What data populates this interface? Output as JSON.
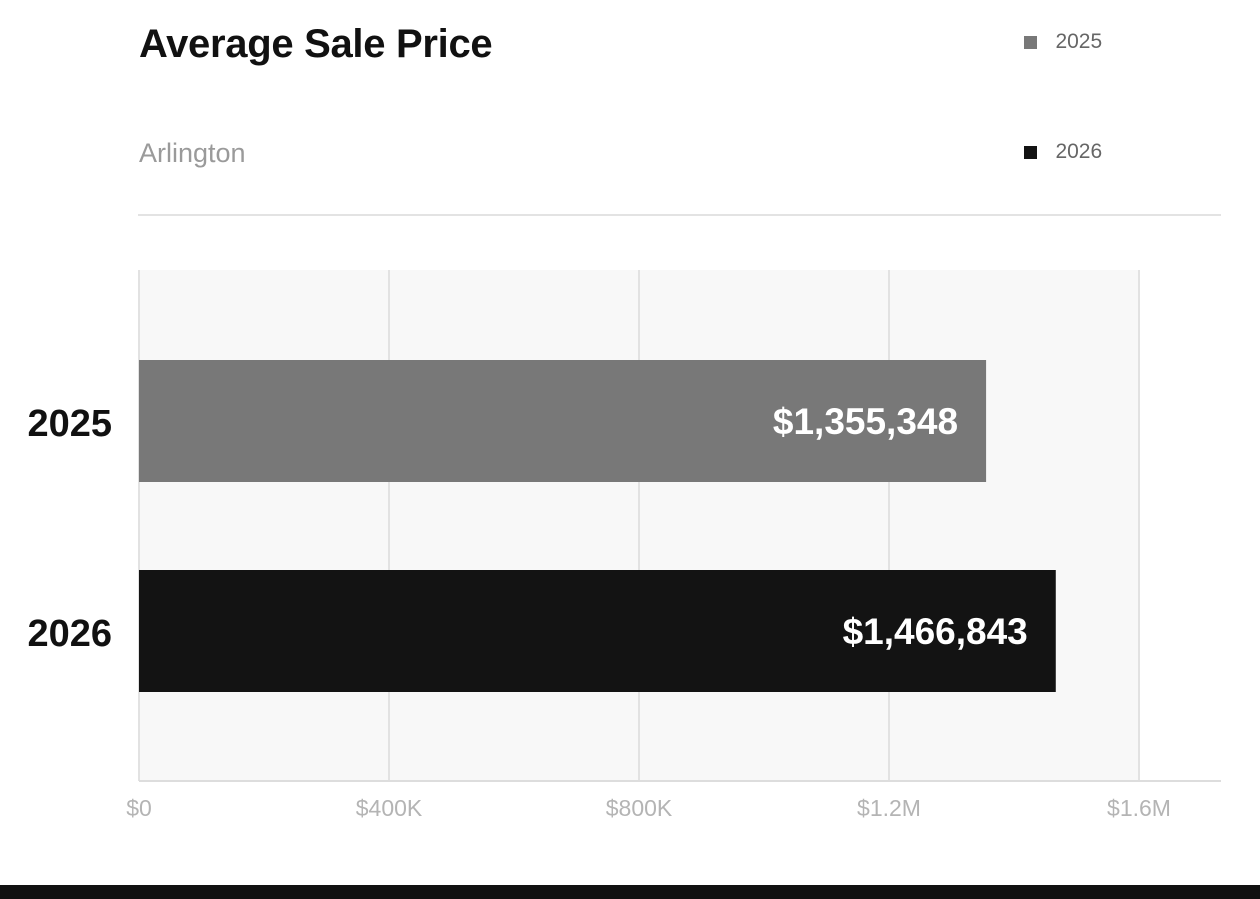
{
  "header": {
    "title": "Average Sale Price",
    "subtitle": "Arlington"
  },
  "legend": [
    {
      "label": "2025",
      "color": "#787878"
    },
    {
      "label": "2026",
      "color": "#131313"
    }
  ],
  "chart_data": {
    "type": "bar",
    "orientation": "horizontal",
    "title": "Average Sale Price",
    "subtitle": "Arlington",
    "categories": [
      "2025",
      "2026"
    ],
    "values": [
      1355348,
      1466843
    ],
    "value_labels": [
      "$1,355,348",
      "$1,466,843"
    ],
    "colors": [
      "#787878",
      "#131313"
    ],
    "xlim": [
      0,
      1733000
    ],
    "x_ticks": [
      0,
      400000,
      800000,
      1200000,
      1600000
    ],
    "x_tick_labels": [
      "$0",
      "$400K",
      "$800K",
      "$1.2M",
      "$1.6M"
    ],
    "xlabel": "",
    "ylabel": "",
    "grid": true,
    "legend_position": "top-right"
  }
}
